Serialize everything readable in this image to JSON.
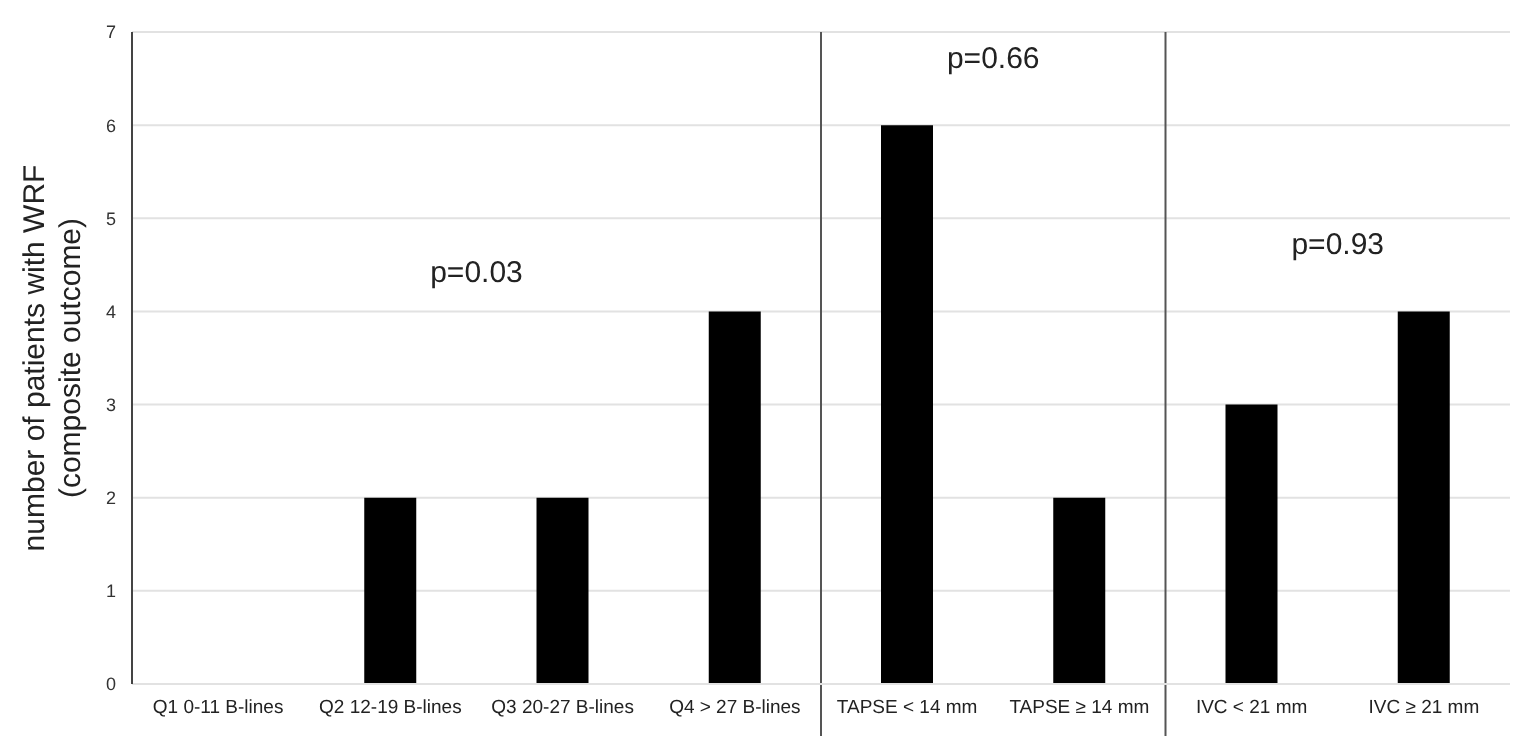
{
  "chart_data": {
    "type": "bar",
    "ylabel": "number of patients with WRF (composite outcome)",
    "categories": [
      "Q1 0-11 B-lines",
      "Q2 12-19 B-lines",
      "Q3 20-27 B-lines",
      "Q4 > 27 B-lines",
      "TAPSE < 14 mm",
      "TAPSE ≥ 14 mm",
      "IVC < 21 mm",
      "IVC ≥ 21 mm"
    ],
    "values": [
      0,
      2,
      2,
      4,
      6,
      2,
      3,
      4
    ],
    "color": "#000000",
    "ylim": [
      0,
      7
    ],
    "yticks": [
      0,
      1,
      2,
      3,
      4,
      5,
      6,
      7
    ],
    "grid": "y",
    "annotations": [
      "p=0.03",
      "p=0.66",
      "p=0.93"
    ]
  }
}
